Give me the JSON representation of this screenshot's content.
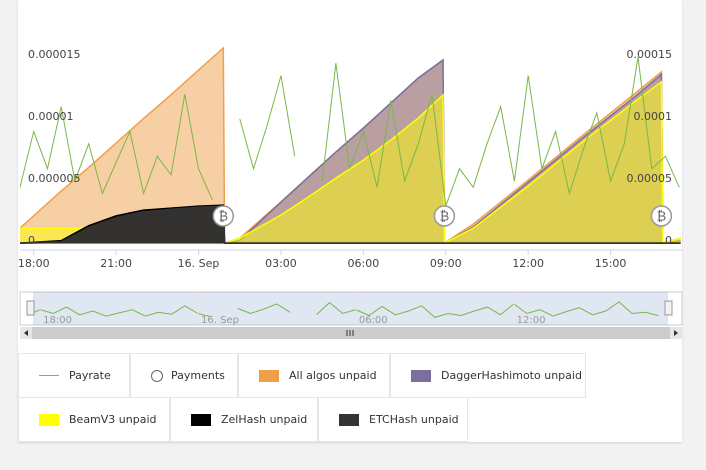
{
  "chart_data": {
    "type": "stock",
    "payment_symbol": "₿",
    "xlim": [
      17.5,
      41.6
    ],
    "xticks": [
      {
        "value": 18,
        "label": "18:00"
      },
      {
        "value": 21,
        "label": "21:00"
      },
      {
        "value": 24,
        "label": "16. Sep"
      },
      {
        "value": 27,
        "label": "03:00"
      },
      {
        "value": 30,
        "label": "06:00"
      },
      {
        "value": 33,
        "label": "09:00"
      },
      {
        "value": 36,
        "label": "12:00"
      },
      {
        "value": 39,
        "label": "15:00"
      }
    ],
    "navigator_xticks": [
      {
        "value": 18,
        "label": "18:00"
      },
      {
        "value": 24,
        "label": "16. Sep"
      },
      {
        "value": 30,
        "label": "06:00"
      },
      {
        "value": 36,
        "label": "12:00"
      }
    ],
    "ylim": [
      -5.6e-07,
      1.96e-05
    ],
    "yticks": [
      0,
      5e-06,
      1e-05,
      1.5e-05
    ],
    "y2lim": [
      -5.6e-06,
      0.000196
    ],
    "y2ticks": [
      0,
      5e-05,
      0.0001,
      0.00015
    ],
    "series": [
      {
        "name": "Payrate",
        "type": "line",
        "axis": "y",
        "color": "#7ab648",
        "x": [
          17.5,
          18,
          18.5,
          19,
          19.5,
          20,
          20.5,
          21,
          21.5,
          22,
          22.5,
          23,
          23.5,
          24,
          24.5,
          25,
          25.5,
          26,
          26.5,
          27,
          27.5,
          28,
          28.5,
          29,
          29.5,
          30,
          30.5,
          31,
          31.5,
          32,
          32.5,
          33,
          33.5,
          34,
          34.5,
          35,
          35.5,
          36,
          36.5,
          37,
          37.5,
          38,
          38.5,
          39,
          39.5,
          40,
          40.5,
          41,
          41.5
        ],
        "values": [
          4.5e-06,
          9e-06,
          6e-06,
          1.1e-05,
          5e-06,
          8e-06,
          4e-06,
          6.5e-06,
          9e-06,
          4e-06,
          7e-06,
          5.5e-06,
          1.2e-05,
          6e-06,
          3.5e-06,
          null,
          1e-05,
          6e-06,
          9.5e-06,
          1.35e-05,
          7e-06,
          null,
          5e-06,
          1.45e-05,
          6e-06,
          9e-06,
          4.5e-06,
          1.15e-05,
          5e-06,
          8e-06,
          1.2e-05,
          3e-06,
          6e-06,
          4.5e-06,
          8e-06,
          1.1e-05,
          5e-06,
          1.35e-05,
          6e-06,
          9e-06,
          4e-06,
          7.5e-06,
          1.05e-05,
          5e-06,
          8e-06,
          1.5e-05,
          6e-06,
          7e-06,
          4.5e-06
        ]
      },
      {
        "name": "Payments",
        "type": "flags",
        "color": "#ffffff",
        "x": [
          24.9,
          32.95,
          40.85
        ]
      },
      {
        "name": "All algos unpaid",
        "type": "area",
        "axis": "y2",
        "color": "#f0a04a",
        "x": [
          17.5,
          19,
          20,
          21,
          22,
          23,
          24,
          24.9,
          24.95,
          25.5,
          27,
          28,
          29,
          30,
          31,
          32,
          32.9,
          32.95,
          34,
          36,
          38,
          40,
          40.85,
          40.9,
          41.55
        ],
        "values": [
          1.21e-05,
          4.19e-05,
          6.09e-05,
          8.06e-05,
          0.0001005,
          0.0001196,
          0.0001395,
          0.0001573,
          0,
          4e-06,
          3.31e-05,
          5.32e-05,
          7.34e-05,
          9.27e-05,
          0.0001129,
          0.0001331,
          0.0001476,
          0,
          1.53e-05,
          5.08e-05,
          8.71e-05,
          0.0001226,
          0.0001379,
          0,
          4e-06
        ]
      },
      {
        "name": "DaggerHashimoto unpaid",
        "type": "area",
        "axis": "y2",
        "color": "#7b6fa0",
        "x": [
          17.5,
          19,
          20,
          21,
          22,
          23,
          24,
          24.9,
          24.95,
          25.5,
          27,
          28,
          29,
          30,
          31,
          32,
          32.9,
          32.95,
          34,
          36,
          38,
          40,
          40.85,
          40.9,
          41.55
        ],
        "values": [
          0,
          0,
          0,
          0,
          0,
          0,
          0,
          0,
          0,
          2e-06,
          3.31e-05,
          5.32e-05,
          7.34e-05,
          9.27e-05,
          0.0001129,
          0.0001331,
          0.0001476,
          0,
          1.3e-05,
          4.9e-05,
          8.5e-05,
          0.00012,
          0.000136,
          0,
          2e-06
        ]
      },
      {
        "name": "BeamV3 unpaid",
        "type": "area",
        "axis": "y2",
        "color": "#ffff00",
        "x": [
          17.5,
          19,
          20,
          21,
          22,
          23,
          24,
          24.9,
          24.95,
          25.5,
          27,
          28,
          29,
          30,
          31,
          32,
          32.9,
          32.95,
          34,
          36,
          38,
          40,
          40.85,
          40.9,
          41.55
        ],
        "values": [
          1.2e-05,
          1.2e-05,
          1.2e-05,
          1.2e-05,
          1.2e-05,
          1.2e-05,
          1.2e-05,
          1.2e-05,
          0,
          4e-06,
          2.26e-05,
          3.71e-05,
          5.24e-05,
          6.69e-05,
          8.3e-05,
          0.0001008,
          0.0001194,
          0,
          1.2e-05,
          4.6e-05,
          8.2e-05,
          0.000116,
          0.00013,
          0,
          4e-06
        ]
      },
      {
        "name": "ZelHash unpaid",
        "type": "area",
        "axis": "y2",
        "color": "#000000",
        "x": [
          17.5,
          19,
          20,
          21,
          22,
          23,
          24,
          24.9,
          24.95,
          25.5,
          27,
          28,
          29,
          30,
          31,
          32,
          32.9,
          32.95,
          34,
          36,
          38,
          40,
          40.85,
          40.9,
          41.55
        ],
        "values": [
          0,
          2e-06,
          1.4e-05,
          2.2e-05,
          2.66e-05,
          2.82e-05,
          2.98e-05,
          3.06e-05,
          0,
          0,
          0,
          0,
          0,
          0,
          0,
          0,
          0,
          0,
          0,
          0,
          0,
          0,
          0,
          0,
          0
        ]
      },
      {
        "name": "ETCHash unpaid",
        "type": "area",
        "axis": "y2",
        "color": "#333333",
        "x": [
          17.5,
          19,
          20,
          21,
          22,
          23,
          24,
          24.9,
          24.95,
          25.5,
          27,
          28,
          29,
          30,
          31,
          32,
          32.9,
          32.95,
          34,
          36,
          38,
          40,
          40.85,
          40.9,
          41.55
        ],
        "values": [
          0,
          1e-06,
          1.2e-05,
          2e-05,
          2.5e-05,
          2.72e-05,
          2.88e-05,
          2.96e-05,
          0,
          0,
          0,
          0,
          0,
          0,
          0,
          0,
          0,
          0,
          0,
          0,
          0,
          0,
          0,
          0,
          0
        ]
      }
    ]
  }
}
